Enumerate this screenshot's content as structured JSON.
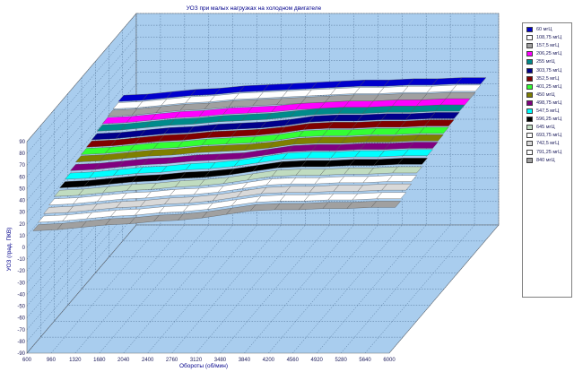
{
  "chart_data": {
    "type": "area",
    "title": "УОЗ при малых нагрузках на холодном двигателе",
    "xlabel": "Обороты (об/мин)",
    "ylabel": "УОЗ (град. ПКВ)",
    "x": [
      600,
      960,
      1320,
      1680,
      2040,
      2400,
      2760,
      3120,
      3480,
      3840,
      4200,
      4560,
      4920,
      5280,
      5640,
      6000
    ],
    "y_ticks": [
      90,
      80,
      70,
      60,
      50,
      40,
      30,
      20,
      10,
      0,
      -10,
      -20,
      -30,
      -40,
      -50,
      -60,
      -70,
      -80,
      -90
    ],
    "ylim": [
      -90,
      90
    ],
    "grid": true,
    "legend": "right",
    "series": [
      {
        "name": "60 мгЦ",
        "color": "#0000cc",
        "values": [
          33,
          34,
          36,
          38,
          39,
          41,
          42,
          43,
          44,
          45,
          46,
          46,
          47,
          47,
          48,
          48
        ]
      },
      {
        "name": "108,75 мгЦ",
        "color": "#ffffff",
        "values": [
          32,
          33,
          35,
          37,
          38,
          40,
          41,
          42,
          43,
          44,
          45,
          45,
          46,
          46,
          47,
          47
        ]
      },
      {
        "name": "157,5 мгЦ",
        "color": "#a0a0a0",
        "values": [
          31,
          32,
          34,
          36,
          37,
          39,
          40,
          41,
          42,
          43,
          44,
          44,
          45,
          45,
          46,
          46
        ]
      },
      {
        "name": "206,25 мгЦ",
        "color": "#ff00ff",
        "values": [
          30,
          31,
          33,
          35,
          36,
          38,
          39,
          40,
          42,
          43,
          44,
          44,
          45,
          45,
          46,
          46
        ]
      },
      {
        "name": "255 мгЦ",
        "color": "#008b8b",
        "values": [
          29,
          30,
          32,
          34,
          35,
          37,
          38,
          39,
          41,
          43,
          44,
          44,
          45,
          45,
          46,
          46
        ]
      },
      {
        "name": "303,75 мгЦ",
        "color": "#00008b",
        "values": [
          27,
          28,
          30,
          32,
          33,
          35,
          36,
          37,
          39,
          42,
          43,
          43,
          44,
          44,
          45,
          45
        ]
      },
      {
        "name": "352,5 мгЦ",
        "color": "#800000",
        "values": [
          26,
          27,
          29,
          31,
          32,
          34,
          35,
          36,
          38,
          41,
          42,
          42,
          43,
          43,
          44,
          44
        ]
      },
      {
        "name": "401,25 мгЦ",
        "color": "#33ff33",
        "values": [
          25,
          26,
          28,
          30,
          31,
          33,
          34,
          35,
          37,
          40,
          41,
          41,
          42,
          42,
          43,
          43
        ]
      },
      {
        "name": "450 мгЦ",
        "color": "#7f7f00",
        "values": [
          24,
          25,
          27,
          29,
          30,
          32,
          33,
          34,
          36,
          39,
          40,
          40,
          41,
          41,
          42,
          42
        ]
      },
      {
        "name": "498,75 мгЦ",
        "color": "#800080",
        "values": [
          22,
          23,
          25,
          27,
          28,
          30,
          31,
          32,
          35,
          38,
          39,
          39,
          40,
          40,
          41,
          41
        ]
      },
      {
        "name": "547,5 мгЦ",
        "color": "#00ffff",
        "values": [
          20,
          21,
          23,
          25,
          26,
          28,
          29,
          31,
          34,
          37,
          38,
          38,
          39,
          39,
          40,
          40
        ]
      },
      {
        "name": "596,25 мгЦ",
        "color": "#000000",
        "values": [
          18,
          19,
          21,
          23,
          24,
          26,
          27,
          29,
          32,
          35,
          36,
          36,
          37,
          37,
          38,
          38
        ]
      },
      {
        "name": "645 мгЦ",
        "color": "#c0dcc0",
        "values": [
          16,
          17,
          19,
          21,
          22,
          24,
          25,
          27,
          30,
          33,
          34,
          34,
          35,
          35,
          36,
          36
        ]
      },
      {
        "name": "693,75 мгЦ",
        "color": "#ffffff",
        "values": [
          14,
          15,
          17,
          19,
          20,
          22,
          23,
          25,
          28,
          31,
          32,
          32,
          33,
          33,
          34,
          34
        ]
      },
      {
        "name": "742,5 мгЦ",
        "color": "#d9d9d9",
        "values": [
          12,
          13,
          15,
          17,
          18,
          20,
          21,
          23,
          26,
          29,
          30,
          30,
          31,
          31,
          32,
          32
        ]
      },
      {
        "name": "791,25 мгЦ",
        "color": "#ffffff",
        "values": [
          10,
          11,
          13,
          15,
          16,
          18,
          19,
          21,
          24,
          27,
          28,
          28,
          29,
          29,
          30,
          30
        ]
      },
      {
        "name": "840 мгЦ",
        "color": "#a0a0a0",
        "values": [
          8,
          9,
          11,
          13,
          14,
          16,
          17,
          19,
          22,
          25,
          26,
          26,
          27,
          27,
          28,
          28
        ]
      }
    ]
  }
}
